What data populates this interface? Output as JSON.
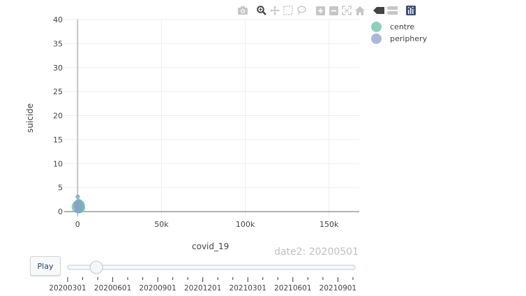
{
  "chart_data": {
    "type": "scatter",
    "xlabel": "covid_19",
    "ylabel": "suicide",
    "xlim": [
      -8000,
      168000
    ],
    "ylim": [
      -1,
      40
    ],
    "x_ticks": [
      0,
      50000,
      100000,
      150000
    ],
    "x_tick_labels": [
      "0",
      "50k",
      "100k",
      "150k"
    ],
    "y_ticks": [
      0,
      5,
      10,
      15,
      20,
      25,
      30,
      35,
      40
    ],
    "y_tick_labels": [
      "0",
      "5",
      "10",
      "15",
      "20",
      "25",
      "30",
      "35",
      "40"
    ],
    "grid": true,
    "legend_position": "top-right",
    "series": [
      {
        "name": "centre",
        "color": "#66c2a5",
        "points": [
          {
            "x": 300,
            "y": 1.0,
            "size": 9
          },
          {
            "x": 900,
            "y": 1.3,
            "size": 8
          },
          {
            "x": 1500,
            "y": 0.8,
            "size": 7
          },
          {
            "x": 600,
            "y": 1.7,
            "size": 6
          },
          {
            "x": 200,
            "y": 0.5,
            "size": 5
          },
          {
            "x": 1100,
            "y": 0.4,
            "size": 5
          },
          {
            "x": 800,
            "y": 2.0,
            "size": 4
          },
          {
            "x": 1800,
            "y": 1.2,
            "size": 5
          }
        ]
      },
      {
        "name": "periphery",
        "color": "#8da0cb",
        "points": [
          {
            "x": 100,
            "y": 3.1,
            "size": 3
          },
          {
            "x": 300,
            "y": 1.4,
            "size": 6
          },
          {
            "x": 500,
            "y": 0.9,
            "size": 5
          },
          {
            "x": 200,
            "y": 0.6,
            "size": 4
          },
          {
            "x": 700,
            "y": 1.1,
            "size": 5
          },
          {
            "x": 400,
            "y": 0.3,
            "size": 4
          },
          {
            "x": 100,
            "y": 1.9,
            "size": 3
          }
        ]
      }
    ]
  },
  "slider": {
    "current_label": "date2: 20200501",
    "current_value": "20200501",
    "steps": [
      "20200301",
      "20200601",
      "20200901",
      "20201201",
      "20210301",
      "20210601",
      "20210901"
    ],
    "position_fraction": 0.1
  },
  "controls": {
    "play_label": "Play"
  },
  "modebar": {
    "icons": [
      "camera-icon",
      "zoom-icon",
      "pan-icon",
      "box-select-icon",
      "lasso-icon",
      "zoom-in-icon",
      "zoom-out-icon",
      "autoscale-icon",
      "reset-axes-icon",
      "spike-lines-icon",
      "compare-hover-icon",
      "plotly-logo-icon"
    ]
  }
}
